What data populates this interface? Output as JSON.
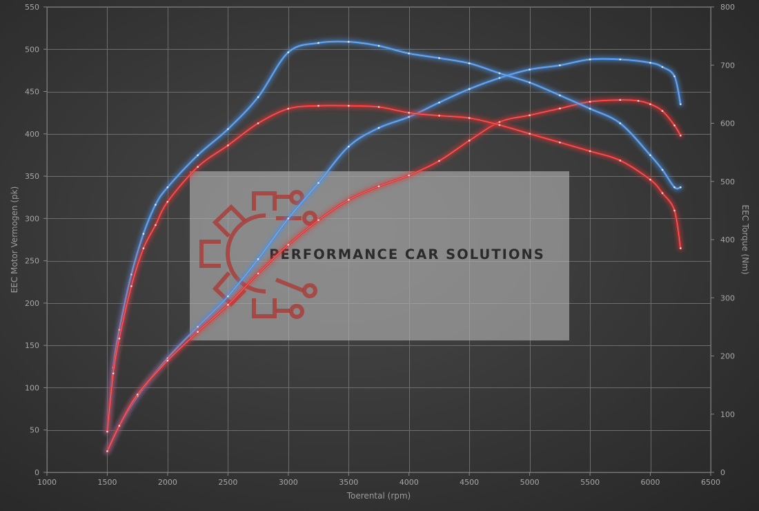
{
  "chart_data": {
    "type": "line",
    "xlabel": "Toerental (rpm)",
    "ylabel": "EEC Motor Vermogen (pk)",
    "y2label": "EEC Torque (Nm)",
    "xlim": [
      1000,
      6500
    ],
    "ylim": [
      0,
      550
    ],
    "y2lim": [
      0,
      800
    ],
    "xticks": [
      1000,
      1500,
      2000,
      2500,
      3000,
      3500,
      4000,
      4500,
      5000,
      5500,
      6000,
      6500
    ],
    "yticks": [
      0,
      50,
      100,
      150,
      200,
      250,
      300,
      350,
      400,
      450,
      500,
      550
    ],
    "y2ticks": [
      0,
      100,
      200,
      300,
      400,
      500,
      600,
      700,
      800
    ],
    "grid": true,
    "legend": "none",
    "series": [
      {
        "color": "#4a90e2",
        "axis": "left",
        "x": [
          1500,
          1600,
          1750,
          2000,
          2250,
          2500,
          2750,
          3000,
          3250,
          3500,
          3750,
          4000,
          4250,
          4500,
          4750,
          5000,
          5250,
          5500,
          5750,
          6000,
          6100,
          6200,
          6250
        ],
        "values": [
          25,
          55,
          90,
          135,
          172,
          208,
          252,
          300,
          342,
          385,
          407,
          420,
          437,
          453,
          466,
          476,
          481,
          488,
          488,
          484,
          479,
          468,
          435
        ]
      },
      {
        "color": "#e03030",
        "axis": "left",
        "x": [
          1500,
          1600,
          1750,
          2000,
          2250,
          2500,
          2750,
          3000,
          3250,
          3500,
          3750,
          4000,
          4250,
          4500,
          4750,
          5000,
          5250,
          5500,
          5750,
          5900,
          6000,
          6100,
          6200,
          6250
        ],
        "values": [
          25,
          55,
          92,
          132,
          166,
          198,
          235,
          269,
          298,
          322,
          338,
          351,
          368,
          392,
          414,
          422,
          430,
          438,
          440,
          439,
          435,
          427,
          410,
          398
        ]
      },
      {
        "color": "#4a90e2",
        "axis": "right",
        "x": [
          1500,
          1550,
          1600,
          1700,
          1800,
          1900,
          2000,
          2250,
          2500,
          2750,
          3000,
          3250,
          3500,
          3750,
          4000,
          4250,
          4500,
          4750,
          5000,
          5250,
          5500,
          5750,
          6000,
          6100,
          6200,
          6250
        ],
        "values": [
          70,
          180,
          245,
          340,
          410,
          460,
          490,
          545,
          590,
          645,
          722,
          738,
          740,
          733,
          720,
          712,
          703,
          686,
          670,
          648,
          625,
          600,
          545,
          520,
          490,
          490
        ]
      },
      {
        "color": "#e03030",
        "axis": "right",
        "x": [
          1500,
          1550,
          1600,
          1700,
          1800,
          1900,
          2000,
          2250,
          2500,
          2750,
          3000,
          3250,
          3500,
          3750,
          4000,
          4250,
          4500,
          4750,
          5000,
          5250,
          5500,
          5750,
          6000,
          6100,
          6200,
          6250
        ],
        "values": [
          70,
          170,
          230,
          320,
          385,
          425,
          465,
          525,
          562,
          600,
          625,
          630,
          630,
          628,
          618,
          613,
          609,
          597,
          582,
          567,
          552,
          536,
          503,
          480,
          450,
          385
        ]
      }
    ]
  },
  "watermark": {
    "text": "PERFORMANCE CAR SOLUTIONS"
  }
}
